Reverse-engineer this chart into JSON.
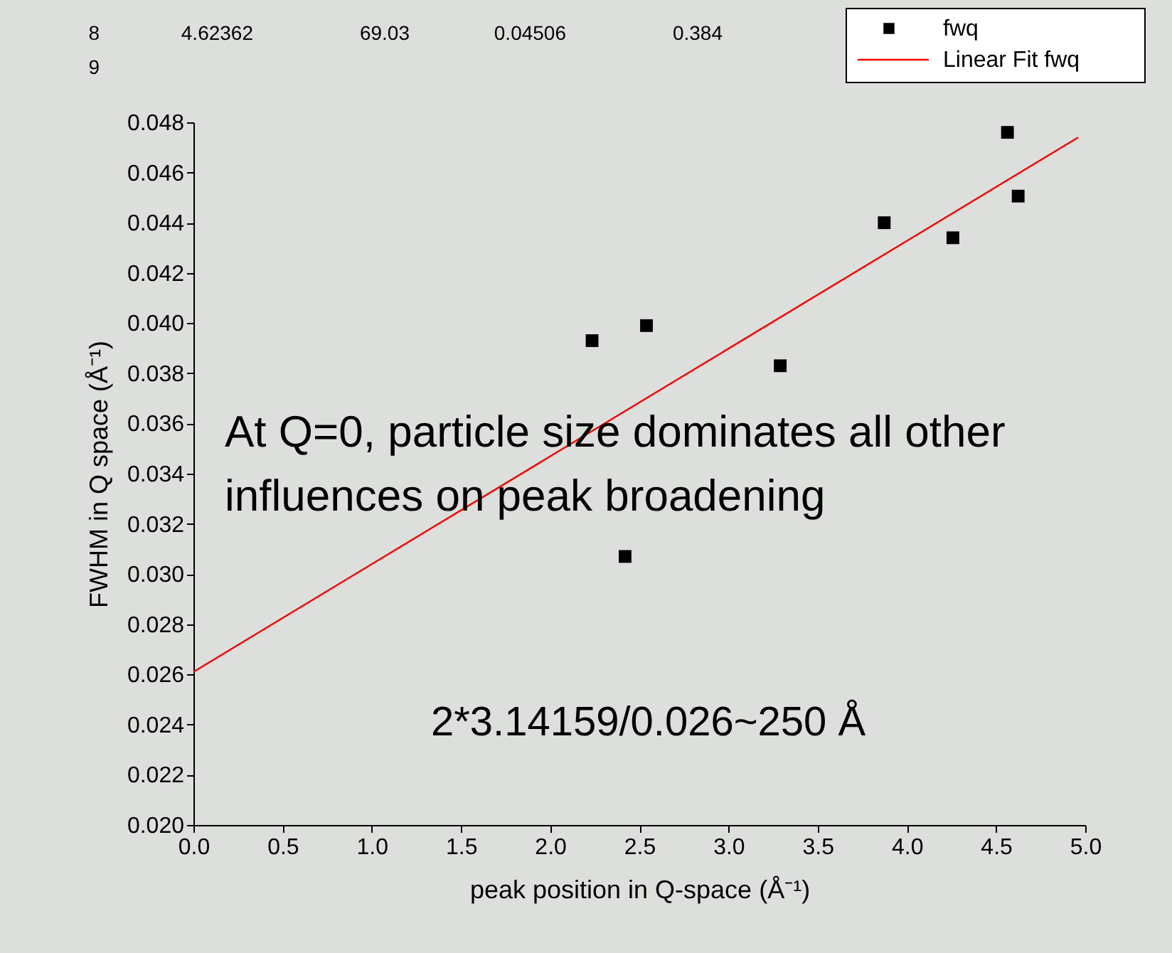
{
  "chart_data": {
    "type": "scatter",
    "xlabel": "peak position in Q-space (Å⁻¹)",
    "ylabel": "FWHM in Q space (Å⁻¹)",
    "xlim": [
      0,
      5
    ],
    "xticks": [
      {
        "value": 0,
        "label": "0.0"
      },
      0.5,
      {
        "value": 1,
        "label": "1.0"
      },
      1.5,
      {
        "value": 2,
        "label": "2.0"
      },
      2.5,
      {
        "value": 3,
        "label": "3.0"
      },
      3.5,
      {
        "value": 4,
        "label": "4.0"
      },
      4.5,
      {
        "value": 5,
        "label": "5.0"
      }
    ],
    "ylim": [
      0.02,
      0.048
    ],
    "yticks": [
      {
        "value": 0.02,
        "label": "0.020"
      },
      0.022,
      0.024,
      0.026,
      0.028,
      {
        "value": 0.03,
        "label": "0.030"
      },
      0.032,
      0.034,
      0.036,
      0.038,
      {
        "value": 0.04,
        "label": "0.040"
      },
      0.042,
      0.044,
      0.046,
      0.048
    ],
    "legend": "top right",
    "series": [
      {
        "name": "fwq",
        "marker": "square",
        "color": "#000000",
        "x": [
          2.235,
          2.42,
          2.54,
          3.29,
          3.873,
          4.258,
          4.564,
          4.624
        ],
        "values": [
          0.0393,
          0.0307,
          0.0399,
          0.0383,
          0.044,
          0.0434,
          0.0476,
          0.04506
        ]
      },
      {
        "name": "Linear Fit fwq",
        "type": "line",
        "marker": "none",
        "color": "#ff0000",
        "x": [
          0,
          4.96
        ],
        "values": [
          0.0261,
          0.0474
        ]
      }
    ],
    "annotations": [
      "8",
      "4.62362",
      "69.03",
      "0.04506",
      "0.384",
      "9",
      "At Q=0, particle size dominates all other",
      "influences on peak broadening",
      "2*3.14159/0.026~250 Å"
    ]
  }
}
